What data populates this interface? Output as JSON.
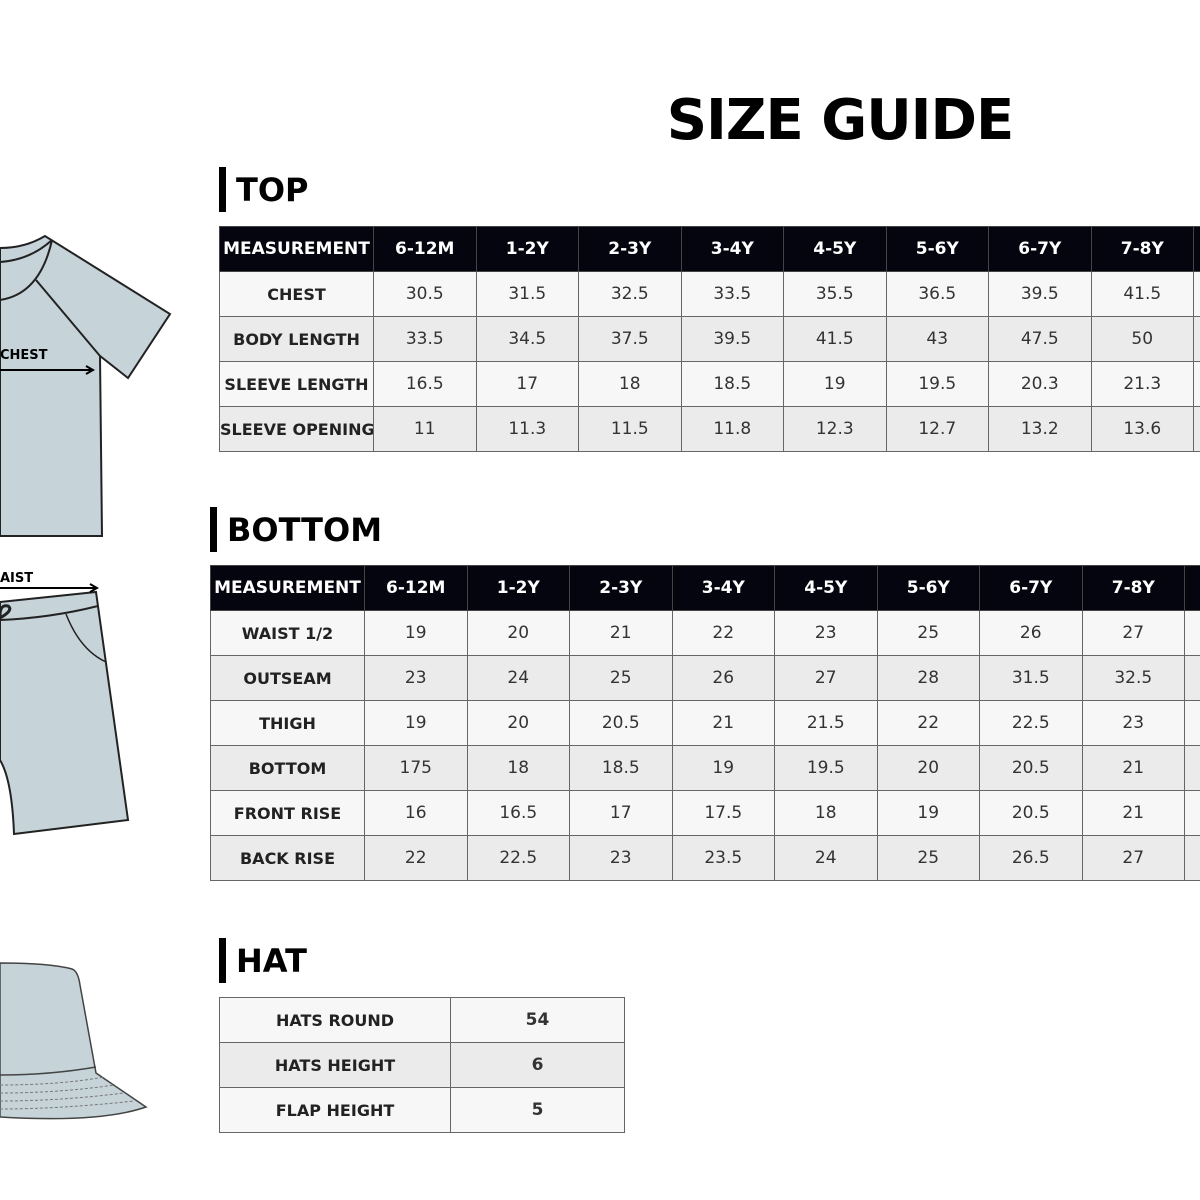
{
  "title": "SIZE GUIDE",
  "illustrations": {
    "top_label": "CHEST",
    "bottom_label": "AIST",
    "garment_color": "#c6d4da"
  },
  "colors": {
    "header_bg": "#05050f",
    "row_odd": "#f7f7f7",
    "row_even": "#ebebeb"
  },
  "top": {
    "heading": "TOP",
    "headers": [
      "MEASUREMENT",
      "6-12M",
      "1-2Y",
      "2-3Y",
      "3-4Y",
      "4-5Y",
      "5-6Y",
      "6-7Y",
      "7-8Y",
      ""
    ],
    "rows": [
      {
        "label": "CHEST",
        "values": [
          "30.5",
          "31.5",
          "32.5",
          "33.5",
          "35.5",
          "36.5",
          "39.5",
          "41.5",
          ""
        ]
      },
      {
        "label": "BODY LENGTH",
        "values": [
          "33.5",
          "34.5",
          "37.5",
          "39.5",
          "41.5",
          "43",
          "47.5",
          "50",
          ""
        ]
      },
      {
        "label": "SLEEVE LENGTH",
        "values": [
          "16.5",
          "17",
          "18",
          "18.5",
          "19",
          "19.5",
          "20.3",
          "21.3",
          ""
        ]
      },
      {
        "label": "SLEEVE OPENING",
        "values": [
          "11",
          "11.3",
          "11.5",
          "11.8",
          "12.3",
          "12.7",
          "13.2",
          "13.6",
          ""
        ]
      }
    ]
  },
  "bottom": {
    "heading": "BOTTOM",
    "headers": [
      "MEASUREMENT",
      "6-12M",
      "1-2Y",
      "2-3Y",
      "3-4Y",
      "4-5Y",
      "5-6Y",
      "6-7Y",
      "7-8Y",
      ""
    ],
    "rows": [
      {
        "label": "WAIST 1/2",
        "values": [
          "19",
          "20",
          "21",
          "22",
          "23",
          "25",
          "26",
          "27",
          ""
        ]
      },
      {
        "label": "OUTSEAM",
        "values": [
          "23",
          "24",
          "25",
          "26",
          "27",
          "28",
          "31.5",
          "32.5",
          ""
        ]
      },
      {
        "label": "THIGH",
        "values": [
          "19",
          "20",
          "20.5",
          "21",
          "21.5",
          "22",
          "22.5",
          "23",
          ""
        ]
      },
      {
        "label": "BOTTOM",
        "values": [
          "175",
          "18",
          "18.5",
          "19",
          "19.5",
          "20",
          "20.5",
          "21",
          ""
        ]
      },
      {
        "label": "FRONT RISE",
        "values": [
          "16",
          "16.5",
          "17",
          "17.5",
          "18",
          "19",
          "20.5",
          "21",
          ""
        ]
      },
      {
        "label": "BACK RISE",
        "values": [
          "22",
          "22.5",
          "23",
          "23.5",
          "24",
          "25",
          "26.5",
          "27",
          ""
        ]
      }
    ]
  },
  "hat": {
    "heading": "HAT",
    "rows": [
      {
        "label": "HATS ROUND",
        "values": [
          "54"
        ]
      },
      {
        "label": "HATS HEIGHT",
        "values": [
          "6"
        ]
      },
      {
        "label": "FLAP HEIGHT",
        "values": [
          "5"
        ]
      }
    ]
  }
}
